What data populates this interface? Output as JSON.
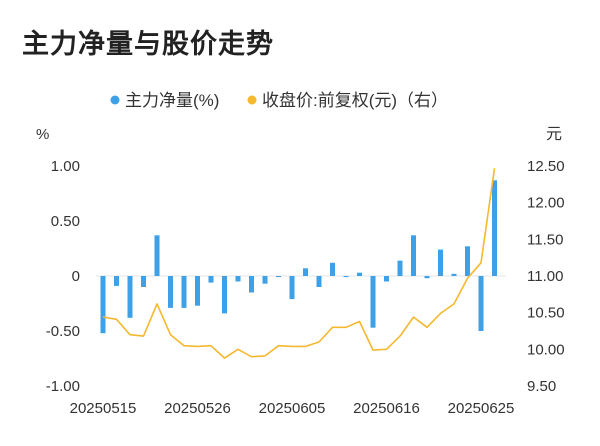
{
  "page": {
    "title": "主力净量与股价走势"
  },
  "chart_data": {
    "type": "bar+line",
    "title": "主力净量与股价走势",
    "left_axis": {
      "unit": "%",
      "ylim": [
        -1.0,
        1.0
      ],
      "ticks": [
        "1.00",
        "0.50",
        "0",
        "-0.50",
        "-1.00"
      ]
    },
    "right_axis": {
      "unit": "元",
      "ylim": [
        9.5,
        12.5
      ],
      "ticks": [
        "12.50",
        "12.00",
        "11.50",
        "11.00",
        "10.50",
        "10.00",
        "9.50"
      ]
    },
    "x_tick_labels": [
      "20250515",
      "20250526",
      "20250605",
      "20250616",
      "20250625"
    ],
    "x_tick_indices": [
      0,
      7,
      14,
      21,
      28
    ],
    "legend": [
      {
        "name": "主力净量(%)",
        "color": "#3ea1e8"
      },
      {
        "name": "收盘价:前复权(元)（右）",
        "color": "#f5b82e"
      }
    ],
    "bars": {
      "name": "主力净量(%)",
      "color": "#3ea1e8",
      "values": [
        -0.52,
        -0.09,
        -0.38,
        -0.1,
        0.37,
        -0.29,
        -0.29,
        -0.27,
        -0.06,
        -0.34,
        -0.05,
        -0.15,
        -0.07,
        -0.01,
        -0.21,
        0.07,
        -0.1,
        0.12,
        -0.01,
        0.03,
        -0.47,
        -0.05,
        0.14,
        0.37,
        -0.02,
        0.24,
        0.02,
        0.27,
        -0.5,
        0.87
      ]
    },
    "line": {
      "name": "收盘价:前复权(元)（右）",
      "color": "#f5b82e",
      "values": [
        10.44,
        10.41,
        10.2,
        10.18,
        10.62,
        10.2,
        10.05,
        10.04,
        10.05,
        9.88,
        10.0,
        9.9,
        9.91,
        10.05,
        10.04,
        10.04,
        10.1,
        10.3,
        10.3,
        10.38,
        9.99,
        10.0,
        10.18,
        10.44,
        10.3,
        10.49,
        10.62,
        10.97,
        11.18,
        12.47
      ]
    }
  }
}
